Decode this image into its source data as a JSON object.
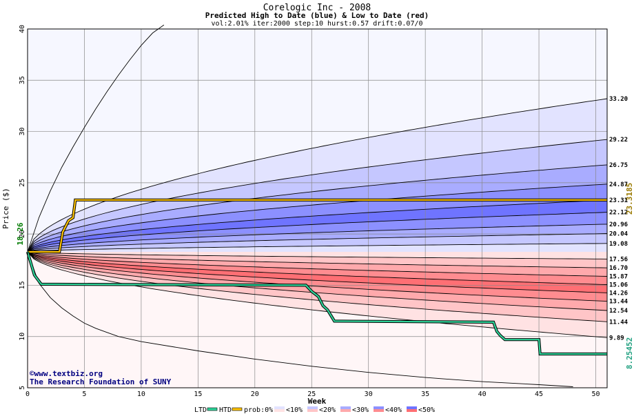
{
  "chart_data": {
    "type": "area",
    "title": "Corelogic Inc - 2008",
    "subtitle": "Predicted High to Date (blue) &  Low to Date (red)",
    "params": "vol:2.01% iter:2000 step:10 hurst:0.57 drift:0.07/0",
    "xlabel": "Week",
    "ylabel": "Price ($)",
    "xlim": [
      0,
      51
    ],
    "ylim": [
      5,
      40
    ],
    "x_ticks": [
      0,
      5,
      10,
      15,
      20,
      25,
      30,
      35,
      40,
      45,
      50
    ],
    "y_ticks": [
      5,
      10,
      15,
      20,
      25,
      30,
      35,
      40
    ],
    "grid": true,
    "start_price": 18.26,
    "start_label": "18.26",
    "colors": {
      "blue_band": "#6f74ff",
      "red_band": "#ff6f74",
      "htd_line": "#ffc400",
      "ltd_line": "#2fd59a",
      "start_label": "#007a00",
      "htd_label": "#9a7a00",
      "ltd_label": "#20a080"
    },
    "high_quantiles": [
      {
        "end": 33.2,
        "label": "33.20",
        "prob": 0.0,
        "k": 0.55
      },
      {
        "end": 29.22,
        "label": "29.22",
        "prob": 0.1,
        "k": 0.53
      },
      {
        "end": 26.75,
        "label": "26.75",
        "prob": 0.2,
        "k": 0.52
      },
      {
        "end": 24.87,
        "label": "24.87",
        "prob": 0.3,
        "k": 0.52
      },
      {
        "end": 23.31,
        "label": "23.31",
        "prob": 0.4,
        "k": 0.52
      },
      {
        "end": 22.12,
        "label": "22.12",
        "prob": 0.5,
        "k": 0.52
      },
      {
        "end": 20.96,
        "label": "20.96",
        "prob": 0.4,
        "k": 0.52
      },
      {
        "end": 20.04,
        "label": "20.04",
        "prob": 0.3,
        "k": 0.53
      },
      {
        "end": 19.08,
        "label": "19.08",
        "prob": 0.2,
        "k": 0.55
      }
    ],
    "low_quantiles": [
      {
        "end": 17.56,
        "label": "17.56",
        "prob": 0.2,
        "k": 0.55
      },
      {
        "end": 16.7,
        "label": "16.70",
        "prob": 0.3,
        "k": 0.53
      },
      {
        "end": 15.87,
        "label": "15.87",
        "prob": 0.4,
        "k": 0.52
      },
      {
        "end": 15.06,
        "label": "15.06",
        "prob": 0.5,
        "k": 0.52
      },
      {
        "end": 14.26,
        "label": "14.26",
        "prob": 0.4,
        "k": 0.52
      },
      {
        "end": 13.44,
        "label": "13.44",
        "prob": 0.3,
        "k": 0.52
      },
      {
        "end": 12.54,
        "label": "12.54",
        "prob": 0.2,
        "k": 0.52
      },
      {
        "end": 11.44,
        "label": "11.44",
        "prob": 0.1,
        "k": 0.53
      },
      {
        "end": 9.89,
        "label": "9.89",
        "prob": 0.0,
        "k": 0.55
      }
    ],
    "outer_high": [
      [
        0,
        18.26
      ],
      [
        1,
        21.6
      ],
      [
        2,
        24.2
      ],
      [
        3,
        26.5
      ],
      [
        4,
        28.5
      ],
      [
        5,
        30.4
      ],
      [
        6,
        32.2
      ],
      [
        7,
        33.9
      ],
      [
        8,
        35.5
      ],
      [
        9,
        37.0
      ],
      [
        10,
        38.4
      ],
      [
        11,
        39.6
      ],
      [
        12,
        40.4
      ]
    ],
    "outer_low": [
      [
        0,
        18.26
      ],
      [
        1,
        15.2
      ],
      [
        2,
        13.8
      ],
      [
        3,
        12.8
      ],
      [
        4,
        12.0
      ],
      [
        5,
        11.3
      ],
      [
        6,
        10.8
      ],
      [
        7,
        10.4
      ],
      [
        8,
        10.0
      ],
      [
        10,
        9.5
      ],
      [
        15,
        8.6
      ],
      [
        20,
        7.8
      ],
      [
        25,
        7.1
      ],
      [
        30,
        6.5
      ],
      [
        35,
        6.0
      ],
      [
        40,
        5.6
      ],
      [
        45,
        5.3
      ],
      [
        48,
        5.1
      ]
    ],
    "htd_series": {
      "name": "HTD",
      "values": [
        [
          0,
          18.26
        ],
        [
          2.8,
          18.26
        ],
        [
          3.1,
          20.2
        ],
        [
          3.6,
          21.3
        ],
        [
          4.0,
          21.6
        ],
        [
          4.2,
          23.3185
        ],
        [
          51,
          23.3185
        ]
      ],
      "end_label": "23.3185"
    },
    "ltd_series": {
      "name": "LTD",
      "values": [
        [
          0,
          18.26
        ],
        [
          0.6,
          16.0
        ],
        [
          1.2,
          15.1
        ],
        [
          24.5,
          15.0
        ],
        [
          25.0,
          14.4
        ],
        [
          25.6,
          13.9
        ],
        [
          26.0,
          13.0
        ],
        [
          26.4,
          12.6
        ],
        [
          27.0,
          11.5
        ],
        [
          41.0,
          11.4
        ],
        [
          41.3,
          10.5
        ],
        [
          41.6,
          10.1
        ],
        [
          42.0,
          9.7
        ],
        [
          45.0,
          9.7
        ],
        [
          45.1,
          8.3
        ],
        [
          51,
          8.3
        ]
      ],
      "end_label": "8.25452"
    },
    "legend": {
      "ltd": "LTD",
      "htd": "HTD",
      "prob_prefix": "prob:0%",
      "items": [
        {
          "label": "<10%",
          "shade": 0.1
        },
        {
          "label": "<20%",
          "shade": 0.2
        },
        {
          "label": "<30%",
          "shade": 0.3
        },
        {
          "label": "<40%",
          "shade": 0.4
        },
        {
          "label": "<50%",
          "shade": 0.5
        }
      ]
    },
    "credits": [
      "©www.textbiz.org",
      "The Research Foundation of SUNY"
    ]
  }
}
